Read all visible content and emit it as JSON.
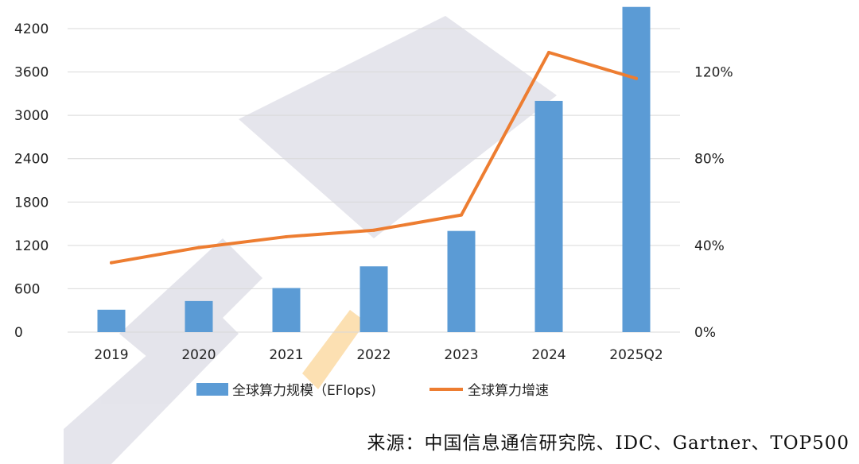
{
  "chart_data": {
    "type": "bar",
    "categories": [
      "2019",
      "2020",
      "2021",
      "2022",
      "2023",
      "2024",
      "2025Q2"
    ],
    "series": [
      {
        "name": "全球算力规模（EFlops)",
        "type": "bar",
        "axis": "left",
        "color": "#5b9bd5",
        "values": [
          310,
          430,
          610,
          910,
          1400,
          3200,
          4500
        ]
      },
      {
        "name": "全球算力增速",
        "type": "line",
        "axis": "right",
        "color": "#ed7d31",
        "values": [
          32,
          39,
          44,
          47,
          54,
          129,
          117
        ]
      }
    ],
    "y_left": {
      "min": 0,
      "max": 4200,
      "ticks": [
        0,
        600,
        1200,
        1800,
        2400,
        3000,
        3600,
        4200
      ],
      "tick_labels": [
        "0",
        "600",
        "1200",
        "1800",
        "2400",
        "3000",
        "3600",
        "4200"
      ]
    },
    "y_right": {
      "min": 0,
      "max": 140,
      "ticks": [
        0,
        40,
        80,
        120
      ],
      "tick_labels": [
        "0%",
        "40%",
        "80%",
        "120%"
      ]
    },
    "grid": true,
    "legend_position": "bottom"
  },
  "source_text": "来源：中国信息通信研究院、IDC、Gartner、TOP500",
  "colors": {
    "grid": "#d9d9d9",
    "text": "#222222",
    "watermark": "#b4b4c8",
    "watermark_accent": "#f5a623"
  }
}
